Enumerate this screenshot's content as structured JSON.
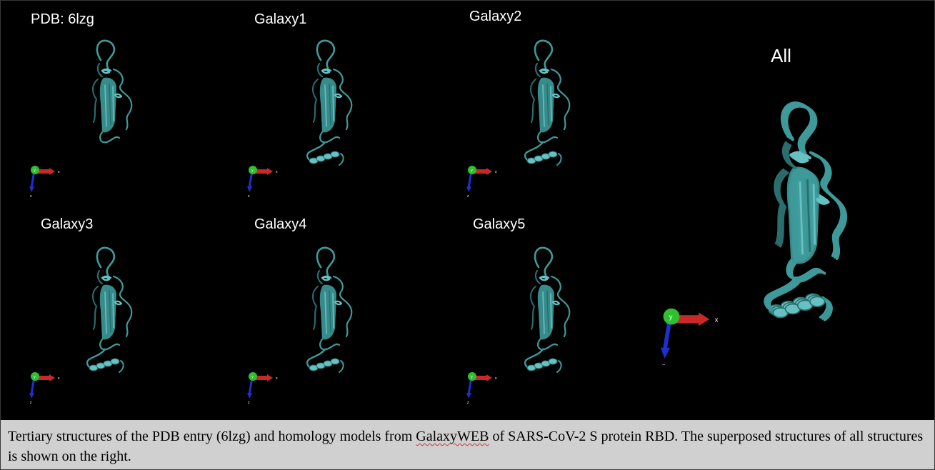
{
  "panels": [
    {
      "id": "pdb",
      "label": "PDB: 6lzg",
      "helix_tail": false
    },
    {
      "id": "galaxy1",
      "label": "Galaxy1",
      "helix_tail": true
    },
    {
      "id": "galaxy2",
      "label": "Galaxy2",
      "helix_tail": true
    },
    {
      "id": "galaxy3",
      "label": "Galaxy3",
      "helix_tail": true
    },
    {
      "id": "galaxy4",
      "label": "Galaxy4",
      "helix_tail": true
    },
    {
      "id": "galaxy5",
      "label": "Galaxy5",
      "helix_tail": true
    }
  ],
  "all_panel": {
    "label": "All"
  },
  "axis_labels": {
    "x": "x",
    "y": "y",
    "z": "z"
  },
  "colors": {
    "background": "#000000",
    "protein": "#3e9a9a",
    "protein_dark": "#2a6e6e",
    "protein_light": "#66c2c2",
    "axis_x": "#c82828",
    "axis_y": "#2fc02f",
    "axis_z": "#1e2fd0",
    "caption_bg": "#d0d0d0"
  },
  "caption": {
    "part1": "Tertiary structures of the PDB entry (6lzg) and homology models from ",
    "flagged_word": "GalaxyWEB",
    "part2": " of SARS-CoV-2 S protein RBD. The superposed structures of all structures is shown on the right."
  }
}
